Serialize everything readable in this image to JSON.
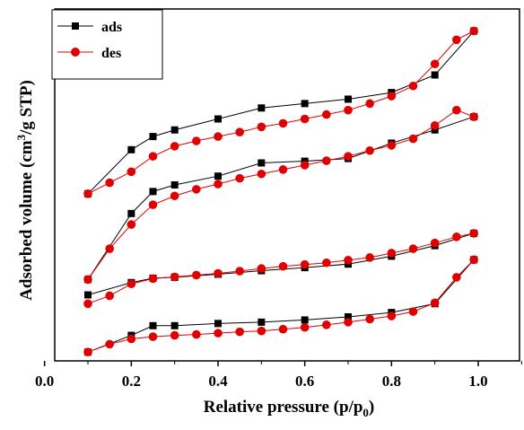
{
  "chart_data": {
    "type": "line",
    "xlabel": "Relative pressure (p/p",
    "xlabel_sub": "0",
    "xlabel_end": ")",
    "ylabel_pre": "Adsorbed volume (cm",
    "ylabel_sup": "3",
    "ylabel_post": "/g STP)",
    "xlim": [
      0.0,
      1.1
    ],
    "x_ticks": [
      "0.0",
      "0.2",
      "0.4",
      "0.6",
      "0.8",
      "1.0"
    ],
    "y_ticks_labeled": false,
    "legend": {
      "position": "top-left",
      "entries": [
        "ads",
        "des"
      ]
    },
    "colors": {
      "ads": "#000000",
      "des": "#e00000"
    },
    "curves": [
      {
        "group": 1,
        "ads": {
          "x": [
            0.1,
            0.2,
            0.25,
            0.3,
            0.4,
            0.5,
            0.6,
            0.7,
            0.8,
            0.9,
            0.99
          ],
          "y": [
            2.0,
            5.8,
            8.0,
            8.0,
            8.5,
            8.8,
            9.3,
            10.0,
            11.0,
            13.0,
            23.0
          ]
        },
        "des": {
          "x": [
            0.1,
            0.15,
            0.2,
            0.25,
            0.3,
            0.35,
            0.4,
            0.45,
            0.5,
            0.55,
            0.6,
            0.65,
            0.7,
            0.75,
            0.8,
            0.85,
            0.9,
            0.95,
            0.99
          ],
          "y": [
            2.0,
            3.8,
            5.0,
            5.5,
            5.8,
            6.0,
            6.3,
            6.6,
            6.8,
            7.2,
            7.6,
            8.2,
            8.8,
            9.5,
            10.2,
            11.2,
            13.2,
            19.0,
            23.0
          ]
        }
      },
      {
        "group": 2,
        "ads": {
          "x": [
            0.1,
            0.2,
            0.25,
            0.3,
            0.4,
            0.5,
            0.6,
            0.7,
            0.8,
            0.9,
            0.99
          ],
          "y": [
            15.0,
            17.8,
            18.8,
            19.0,
            19.7,
            20.5,
            21.2,
            22.0,
            23.8,
            26.2,
            29.0
          ]
        },
        "des": {
          "x": [
            0.1,
            0.15,
            0.2,
            0.25,
            0.3,
            0.35,
            0.4,
            0.45,
            0.5,
            0.55,
            0.6,
            0.65,
            0.7,
            0.75,
            0.8,
            0.85,
            0.9,
            0.95,
            0.99
          ],
          "y": [
            13.0,
            14.8,
            17.5,
            18.7,
            19.1,
            19.5,
            19.9,
            20.4,
            21.0,
            21.5,
            21.9,
            22.3,
            22.9,
            23.5,
            24.5,
            25.5,
            26.8,
            28.2,
            29.0
          ]
        }
      },
      {
        "group": 3,
        "ads": {
          "x": [
            0.1,
            0.2,
            0.25,
            0.3,
            0.4,
            0.5,
            0.6,
            0.7,
            0.8,
            0.9,
            0.99
          ],
          "y": [
            18.5,
            33.5,
            38.5,
            40.0,
            42.0,
            45.0,
            45.4,
            46.0,
            49.5,
            52.5,
            55.5
          ]
        },
        "des": {
          "x": [
            0.1,
            0.15,
            0.2,
            0.25,
            0.3,
            0.35,
            0.4,
            0.45,
            0.5,
            0.55,
            0.6,
            0.65,
            0.7,
            0.75,
            0.8,
            0.85,
            0.9,
            0.95,
            0.99
          ],
          "y": [
            18.5,
            25.5,
            31.0,
            35.5,
            37.5,
            39.0,
            40.2,
            41.5,
            42.5,
            43.5,
            44.5,
            45.5,
            46.5,
            47.8,
            49.0,
            50.5,
            53.5,
            57.0,
            55.5
          ]
        }
      },
      {
        "group": 4,
        "ads": {
          "x": [
            0.1,
            0.2,
            0.25,
            0.3,
            0.4,
            0.5,
            0.6,
            0.7,
            0.8,
            0.9,
            0.99
          ],
          "y": [
            38.0,
            48.0,
            51.0,
            52.5,
            55.0,
            57.5,
            58.5,
            59.5,
            61.0,
            65.0,
            75.0
          ]
        },
        "des": {
          "x": [
            0.1,
            0.15,
            0.2,
            0.25,
            0.3,
            0.35,
            0.4,
            0.45,
            0.5,
            0.55,
            0.6,
            0.65,
            0.7,
            0.75,
            0.8,
            0.85,
            0.9,
            0.95,
            0.99
          ],
          "y": [
            38.0,
            40.5,
            43.0,
            46.5,
            48.8,
            50.0,
            51.0,
            52.0,
            53.2,
            54.0,
            55.0,
            56.0,
            57.0,
            58.5,
            60.2,
            62.5,
            67.5,
            73.0,
            75.0
          ]
        }
      }
    ]
  }
}
